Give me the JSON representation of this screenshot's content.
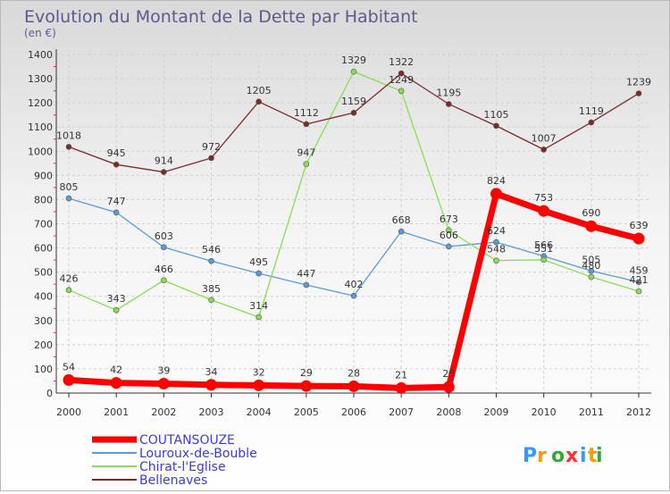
{
  "chart_data": {
    "type": "line",
    "title": "Evolution du Montant de la Dette par Habitant",
    "subtitle": "(en €)",
    "x": [
      2000,
      2001,
      2002,
      2003,
      2004,
      2005,
      2006,
      2007,
      2008,
      2009,
      2010,
      2011,
      2012
    ],
    "ylim": [
      0,
      1400
    ],
    "yticks": [
      0,
      100,
      200,
      300,
      400,
      500,
      600,
      700,
      800,
      900,
      1000,
      1100,
      1200,
      1300,
      1400
    ],
    "grid": true,
    "legend_position": "bottom-left",
    "series": [
      {
        "name": "COUTANSOUZE",
        "color": "#ff0000",
        "values": [
          54,
          42,
          39,
          34,
          32,
          29,
          28,
          21,
          25,
          824,
          753,
          690,
          639
        ]
      },
      {
        "name": "Louroux-de-Bouble",
        "color": "#5b9bd5",
        "values": [
          805,
          747,
          603,
          546,
          495,
          447,
          402,
          668,
          606,
          624,
          566,
          505,
          459
        ]
      },
      {
        "name": "Chirat-l'Eglise",
        "color": "#88dd55",
        "values": [
          426,
          343,
          466,
          385,
          314,
          947,
          1329,
          1249,
          673,
          548,
          551,
          480,
          421
        ]
      },
      {
        "name": "Bellenaves",
        "color": "#7b2a2a",
        "values": [
          1018,
          945,
          914,
          972,
          1205,
          1112,
          1159,
          1322,
          1195,
          1105,
          1007,
          1119,
          1239
        ]
      }
    ]
  },
  "logo_text": "Proxiti"
}
